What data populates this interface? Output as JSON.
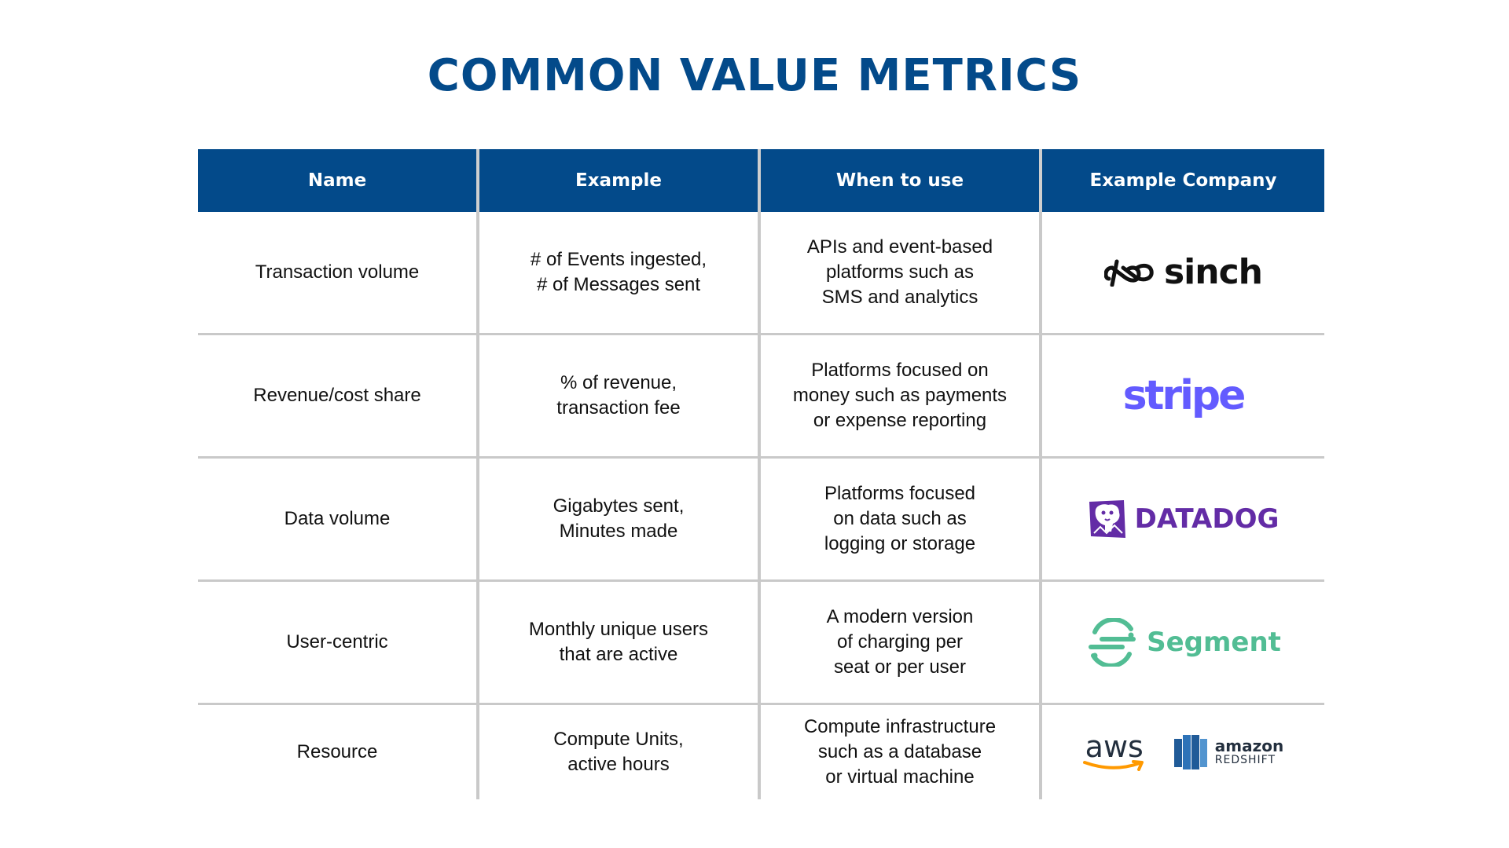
{
  "title": "COMMON VALUE METRICS",
  "headers": [
    "Name",
    "Example",
    "When to use",
    "Example Company"
  ],
  "rows": [
    {
      "name": "Transaction volume",
      "example": [
        "# of Events ingested,",
        "# of Messages sent"
      ],
      "when": [
        "APIs and event-based",
        "platforms such as",
        "SMS and analytics"
      ],
      "company": "sinch"
    },
    {
      "name": "Revenue/cost share",
      "example": [
        "% of revenue,",
        "transaction fee"
      ],
      "when": [
        "Platforms focused on",
        "money such as payments",
        "or expense reporting"
      ],
      "company": "stripe"
    },
    {
      "name": "Data volume",
      "example": [
        "Gigabytes sent,",
        "Minutes made"
      ],
      "when": [
        "Platforms focused",
        "on data such as",
        "logging or storage"
      ],
      "company": "DATADOG"
    },
    {
      "name": "User-centric",
      "example": [
        "Monthly unique users",
        "that are active"
      ],
      "when": [
        "A modern version",
        "of charging per",
        "seat or per user"
      ],
      "company": "Segment"
    },
    {
      "name": "Resource",
      "example": [
        "Compute Units,",
        "active hours"
      ],
      "when": [
        "Compute infrastructure",
        "such as a database",
        "or virtual machine"
      ],
      "company": "aws",
      "company_secondary": {
        "top": "amazon",
        "bottom": "REDSHIFT"
      }
    }
  ],
  "colors": {
    "title": "#034a8a",
    "header_bg": "#034a8a",
    "grid": "#c9c9c9",
    "stripe": "#635bff",
    "datadog": "#632ca6",
    "segment": "#52bd94",
    "aws_orange": "#ff9900",
    "redshift_blue": "#205b98"
  },
  "icons": [
    "sinch-logo-icon",
    "datadog-dog-icon",
    "segment-logo-icon",
    "aws-smile-icon",
    "redshift-icon"
  ]
}
